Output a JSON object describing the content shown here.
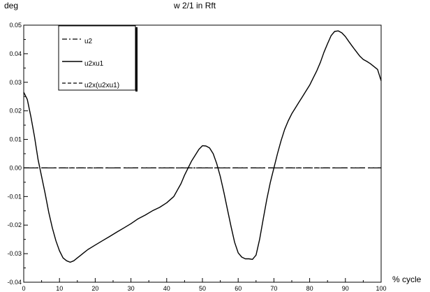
{
  "chart_data": {
    "type": "line",
    "title": "w 2/1 in Rft",
    "xlabel": "% cycle",
    "ylabel": "deg",
    "xlim": [
      0,
      100
    ],
    "ylim": [
      -0.04,
      0.05
    ],
    "grid": false,
    "legend_position": "top-left",
    "x_ticks": [
      0,
      10,
      20,
      30,
      40,
      50,
      60,
      70,
      80,
      90,
      100
    ],
    "x_tick_labels": [
      "0",
      "10",
      "20",
      "30",
      "40",
      "50",
      "60",
      "70",
      "80",
      "90",
      "100"
    ],
    "y_ticks": [
      -0.04,
      -0.03,
      -0.02,
      -0.01,
      0.0,
      0.01,
      0.02,
      0.03,
      0.04,
      0.05
    ],
    "y_tick_labels": [
      "-0.04",
      "-0.03",
      "-0.02",
      "-0.01",
      "0.00",
      "0.01",
      "0.02",
      "0.03",
      "0.04",
      "0.05"
    ],
    "series": [
      {
        "name": "u2",
        "style": "dash-dot",
        "x": [
          0,
          100
        ],
        "y": [
          0,
          0
        ]
      },
      {
        "name": "u2xu1",
        "style": "solid",
        "x": [
          0,
          1,
          2,
          3,
          4,
          5,
          6,
          7,
          8,
          9,
          10,
          11,
          12,
          13,
          14,
          15,
          16,
          17,
          18,
          20,
          22,
          24,
          26,
          28,
          30,
          32,
          34,
          36,
          38,
          40,
          42,
          44,
          45,
          46,
          47,
          48,
          49,
          50,
          51,
          52,
          53,
          54,
          55,
          56,
          57,
          58,
          59,
          60,
          61,
          62,
          63,
          64,
          65,
          66,
          67,
          68,
          69,
          70,
          71,
          72,
          73,
          74,
          75,
          76,
          77,
          78,
          79,
          80,
          81,
          82,
          83,
          84,
          85,
          86,
          87,
          88,
          89,
          90,
          91,
          92,
          93,
          94,
          95,
          96,
          97,
          98,
          99,
          100
        ],
        "y": [
          0.0265,
          0.024,
          0.018,
          0.011,
          0.003,
          -0.003,
          -0.009,
          -0.0155,
          -0.021,
          -0.0255,
          -0.029,
          -0.0315,
          -0.0325,
          -0.033,
          -0.0325,
          -0.0315,
          -0.0305,
          -0.0295,
          -0.0285,
          -0.027,
          -0.0255,
          -0.024,
          -0.0225,
          -0.021,
          -0.0195,
          -0.0178,
          -0.0165,
          -0.015,
          -0.0138,
          -0.0122,
          -0.01,
          -0.0055,
          -0.0025,
          0.0,
          0.0025,
          0.0045,
          0.0065,
          0.0078,
          0.0077,
          0.007,
          0.005,
          0.0015,
          -0.003,
          -0.0085,
          -0.0145,
          -0.0205,
          -0.026,
          -0.0297,
          -0.0312,
          -0.0318,
          -0.0318,
          -0.032,
          -0.0305,
          -0.025,
          -0.018,
          -0.011,
          -0.005,
          0.0,
          0.005,
          0.0095,
          0.0135,
          0.0165,
          0.019,
          0.021,
          0.023,
          0.025,
          0.027,
          0.029,
          0.0315,
          0.034,
          0.037,
          0.0405,
          0.0435,
          0.0463,
          0.0478,
          0.048,
          0.0473,
          0.046,
          0.0442,
          0.0425,
          0.0408,
          0.0392,
          0.038,
          0.0373,
          0.0365,
          0.0355,
          0.0345,
          0.0305
        ]
      },
      {
        "name": "u2x(u2xu1)",
        "style": "dashed",
        "x": [
          0,
          100
        ],
        "y": [
          0,
          0
        ]
      }
    ]
  }
}
